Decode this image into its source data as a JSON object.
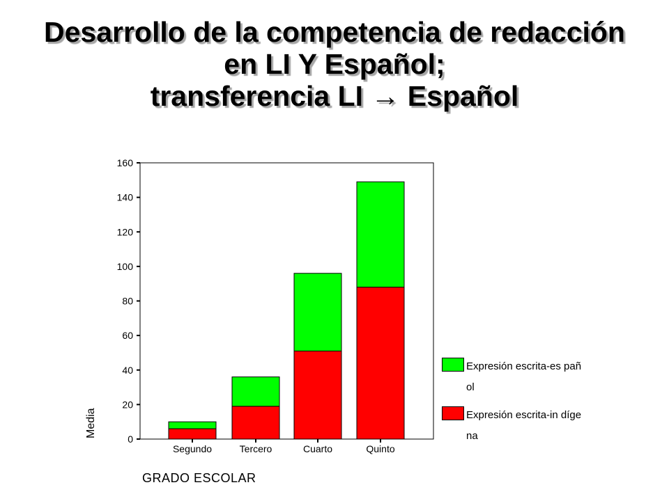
{
  "title": {
    "line1": "Desarrollo de la competencia de redacción",
    "line2": "en LI Y Español;",
    "line3": "transferencia LI → Español"
  },
  "chart_data": {
    "type": "bar",
    "stacked": true,
    "categories": [
      "Segundo",
      "Tercero",
      "Cuarto",
      "Quinto"
    ],
    "series": [
      {
        "name": "Expresión escrita-indígena",
        "color": "#ff0000",
        "values": [
          6,
          19,
          51,
          88
        ]
      },
      {
        "name": "Expresión escrita-español",
        "color": "#00ff00",
        "values": [
          4,
          17,
          45,
          61
        ]
      }
    ],
    "xlabel": "GRADO ESCOLAR",
    "ylabel": "Media",
    "ylim": [
      0,
      160
    ],
    "yticks": [
      0,
      20,
      40,
      60,
      80,
      100,
      120,
      140,
      160
    ],
    "grid": false,
    "legend_position": "right"
  },
  "legend": {
    "items": [
      {
        "label": "Expresión escrita-es pañol",
        "color": "#00ff00"
      },
      {
        "label": "Expresión escrita-in dígena",
        "color": "#ff0000"
      }
    ]
  }
}
